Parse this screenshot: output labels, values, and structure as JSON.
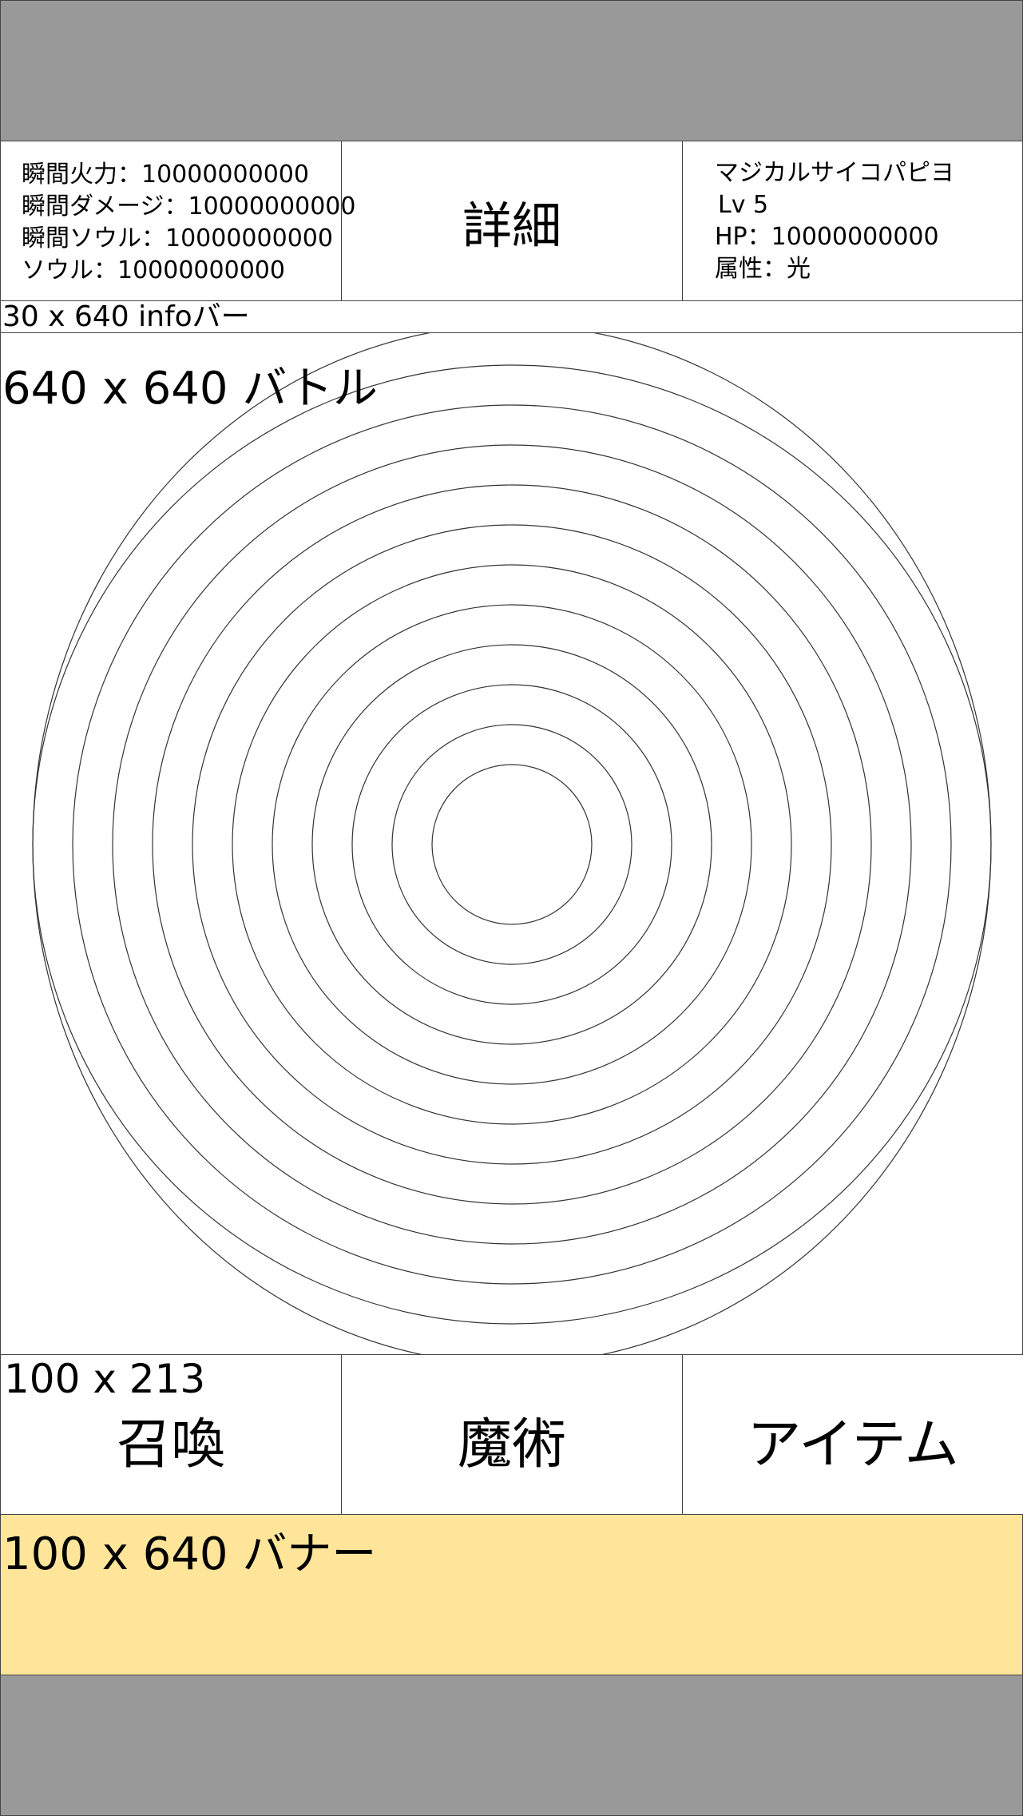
{
  "header": {
    "stats": [
      "瞬間火力：10000000000",
      "瞬間ダメージ：10000000000",
      "瞬間ソウル：10000000000",
      "ソウル：10000000000"
    ],
    "detail_label": "詳細",
    "monster": {
      "name": "マジカルサイコパピヨ",
      "level": "Lv 5",
      "hp": "HP：10000000000",
      "attribute": "属性：光"
    }
  },
  "info_bar": {
    "label": "30 x 640 infoバー"
  },
  "battle": {
    "label": "640 x 640 バトル",
    "ring_count": 12
  },
  "commands": {
    "size_label": "100 x 213",
    "summon_label": "召喚",
    "magic_label": "魔術",
    "item_label": "アイテム"
  },
  "banner": {
    "label": "100 x 640 バナー",
    "color": "#ffe599"
  },
  "colors": {
    "frame_gray": "#999999",
    "border": "#444444"
  }
}
